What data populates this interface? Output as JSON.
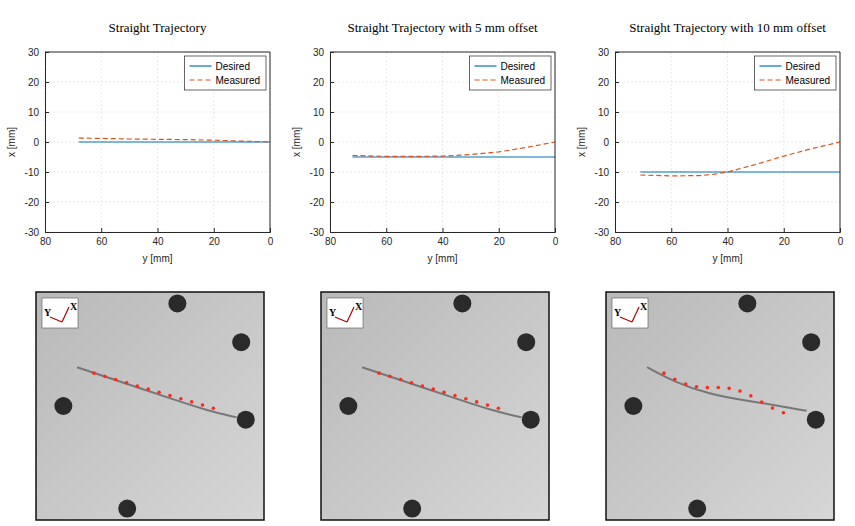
{
  "chart_data": [
    {
      "type": "line",
      "title": "Straight Trajectory",
      "xlabel": "y [mm]",
      "ylabel": "x [mm]",
      "xlim": [
        80,
        0
      ],
      "xticks": [
        80,
        60,
        40,
        20,
        0
      ],
      "ylim": [
        -30,
        30
      ],
      "yticks": [
        -30,
        -20,
        -10,
        0,
        10,
        20,
        30
      ],
      "grid": true,
      "legend": "top-right",
      "series": [
        {
          "name": "Desired",
          "color": "#0072bd",
          "line_style": "solid",
          "x": [
            68,
            0
          ],
          "values": [
            0,
            0
          ]
        },
        {
          "name": "Measured",
          "color": "#d95319",
          "line_style": "dashed",
          "x": [
            68,
            60,
            50,
            40,
            30,
            20,
            10,
            0
          ],
          "values": [
            1.3,
            1.2,
            1.0,
            0.9,
            0.8,
            0.6,
            0.3,
            0
          ]
        }
      ]
    },
    {
      "type": "line",
      "title": "Straight Trajectory with 5 mm offset",
      "xlabel": "y [mm]",
      "ylabel": "x [mm]",
      "xlim": [
        80,
        0
      ],
      "xticks": [
        80,
        60,
        40,
        20,
        0
      ],
      "ylim": [
        -30,
        30
      ],
      "yticks": [
        -30,
        -20,
        -10,
        0,
        10,
        20,
        30
      ],
      "grid": true,
      "legend": "top-right",
      "series": [
        {
          "name": "Desired",
          "color": "#0072bd",
          "line_style": "solid",
          "x": [
            72,
            0
          ],
          "values": [
            -5,
            -5
          ]
        },
        {
          "name": "Measured",
          "color": "#d95319",
          "line_style": "dashed",
          "x": [
            72,
            60,
            50,
            40,
            30,
            20,
            10,
            0
          ],
          "values": [
            -4.5,
            -4.8,
            -4.8,
            -4.7,
            -4.2,
            -3.3,
            -1.8,
            0
          ]
        }
      ]
    },
    {
      "type": "line",
      "title": "Straight Trajectory with 10 mm offset",
      "xlabel": "y [mm]",
      "ylabel": "x [mm]",
      "xlim": [
        80,
        0
      ],
      "xticks": [
        80,
        60,
        40,
        20,
        0
      ],
      "ylim": [
        -30,
        30
      ],
      "yticks": [
        -30,
        -20,
        -10,
        0,
        10,
        20,
        30
      ],
      "grid": true,
      "legend": "top-right",
      "series": [
        {
          "name": "Desired",
          "color": "#0072bd",
          "line_style": "solid",
          "x": [
            71,
            0
          ],
          "values": [
            -10,
            -10
          ]
        },
        {
          "name": "Measured",
          "color": "#d95319",
          "line_style": "dashed",
          "x": [
            71,
            60,
            50,
            45,
            40,
            30,
            20,
            10,
            0
          ],
          "values": [
            -11,
            -11.3,
            -11.2,
            -10.8,
            -10,
            -7.5,
            -4.7,
            -2.2,
            0
          ]
        }
      ]
    }
  ],
  "images": [
    {
      "axis_labels": [
        "X",
        "Y"
      ]
    },
    {
      "axis_labels": [
        "X",
        "Y"
      ]
    },
    {
      "axis_labels": [
        "X",
        "Y"
      ]
    }
  ]
}
